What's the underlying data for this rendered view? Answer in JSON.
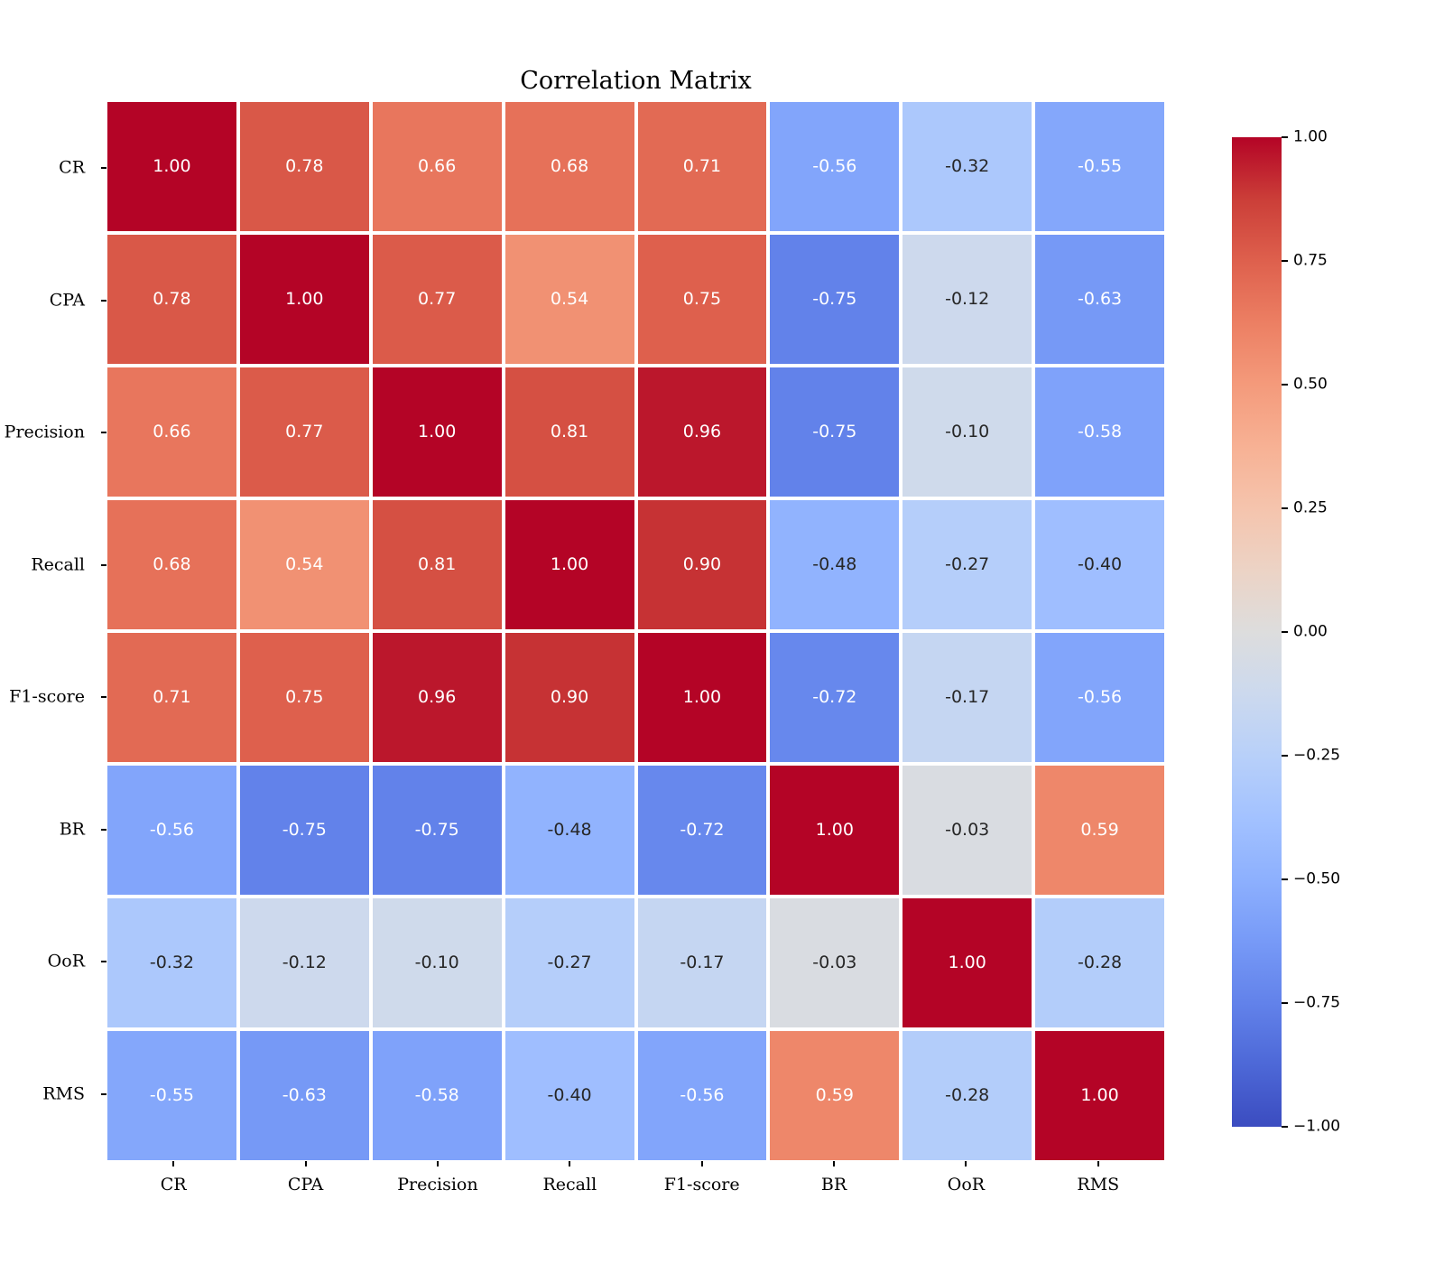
{
  "chart_data": {
    "type": "heatmap",
    "title": "Correlation Matrix",
    "categories": [
      "CR",
      "CPA",
      "Precision",
      "Recall",
      "F1-score",
      "BR",
      "OoR",
      "RMS"
    ],
    "matrix": [
      [
        1.0,
        0.78,
        0.66,
        0.68,
        0.71,
        -0.56,
        -0.32,
        -0.55
      ],
      [
        0.78,
        1.0,
        0.77,
        0.54,
        0.75,
        -0.75,
        -0.12,
        -0.63
      ],
      [
        0.66,
        0.77,
        1.0,
        0.81,
        0.96,
        -0.75,
        -0.1,
        -0.58
      ],
      [
        0.68,
        0.54,
        0.81,
        1.0,
        0.9,
        -0.48,
        -0.27,
        -0.4
      ],
      [
        0.71,
        0.75,
        0.96,
        0.9,
        1.0,
        -0.72,
        -0.17,
        -0.56
      ],
      [
        -0.56,
        -0.75,
        -0.75,
        -0.48,
        -0.72,
        1.0,
        -0.03,
        0.59
      ],
      [
        -0.32,
        -0.12,
        -0.1,
        -0.27,
        -0.17,
        -0.03,
        1.0,
        -0.28
      ],
      [
        -0.55,
        -0.63,
        -0.58,
        -0.4,
        -0.56,
        0.59,
        -0.28,
        1.0
      ]
    ],
    "vmin": -1,
    "vmax": 1,
    "value_decimals": 2,
    "grid_line_color": "#ffffff",
    "annotation_colors": {
      "on_dark": "#ffffff",
      "on_light": "#262626"
    },
    "colormap": {
      "name": "coolwarm",
      "anchors": [
        {
          "v": -1.0,
          "c": "#3b4cc0"
        },
        {
          "v": -0.875,
          "c": "#4d68d7"
        },
        {
          "v": -0.75,
          "c": "#6282ea"
        },
        {
          "v": -0.625,
          "c": "#779af7"
        },
        {
          "v": -0.5,
          "c": "#8db0fe"
        },
        {
          "v": -0.375,
          "c": "#a3c2ff"
        },
        {
          "v": -0.25,
          "c": "#b8d0f9"
        },
        {
          "v": -0.125,
          "c": "#ccd9ee"
        },
        {
          "v": 0.0,
          "c": "#dddddd"
        },
        {
          "v": 0.125,
          "c": "#ecd3c5"
        },
        {
          "v": 0.25,
          "c": "#f5c4ad"
        },
        {
          "v": 0.375,
          "c": "#f7b194"
        },
        {
          "v": 0.5,
          "c": "#f49a7b"
        },
        {
          "v": 0.625,
          "c": "#ec7f63"
        },
        {
          "v": 0.75,
          "c": "#de604d"
        },
        {
          "v": 0.875,
          "c": "#cb3e38"
        },
        {
          "v": 1.0,
          "c": "#b40426"
        }
      ]
    },
    "colorbar": {
      "position": "right",
      "ticks": [
        {
          "v": 1.0,
          "label": "1.00"
        },
        {
          "v": 0.75,
          "label": "0.75"
        },
        {
          "v": 0.5,
          "label": "0.50"
        },
        {
          "v": 0.25,
          "label": "0.25"
        },
        {
          "v": 0.0,
          "label": "0.00"
        },
        {
          "v": -0.25,
          "label": "−0.25"
        },
        {
          "v": -0.5,
          "label": "−0.50"
        },
        {
          "v": -0.75,
          "label": "−0.75"
        },
        {
          "v": -1.0,
          "label": "−1.00"
        }
      ]
    },
    "legend": null,
    "grid": false
  }
}
